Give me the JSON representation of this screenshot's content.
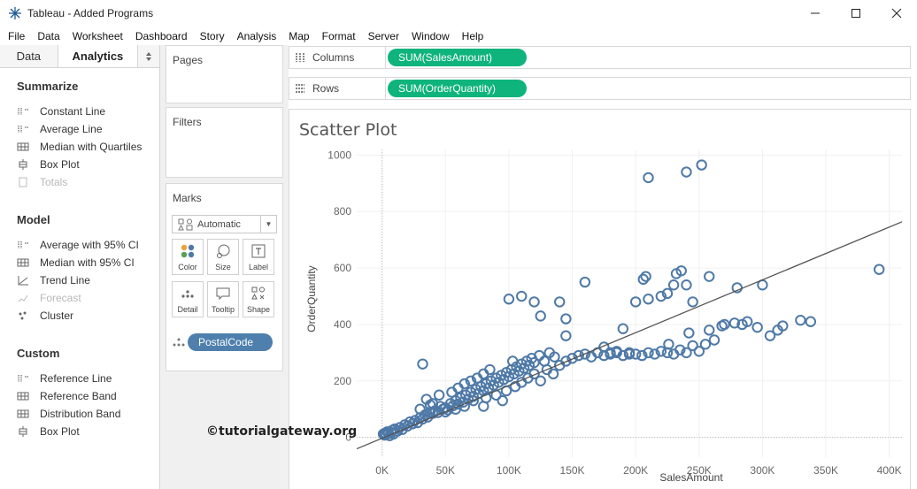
{
  "window": {
    "title": "Tableau - Added Programs",
    "minimize_icon": "minimize-icon",
    "maximize_icon": "maximize-icon",
    "close_icon": "close-icon"
  },
  "menu": [
    "File",
    "Data",
    "Worksheet",
    "Dashboard",
    "Story",
    "Analysis",
    "Map",
    "Format",
    "Server",
    "Window",
    "Help"
  ],
  "left_pane": {
    "tabs": {
      "data": "Data",
      "analytics": "Analytics"
    },
    "sections": {
      "summarize": {
        "title": "Summarize",
        "items": [
          {
            "label": "Constant Line",
            "icon": "constant-line-icon",
            "enabled": true
          },
          {
            "label": "Average Line",
            "icon": "average-line-icon",
            "enabled": true
          },
          {
            "label": "Median with Quartiles",
            "icon": "median-quartiles-icon",
            "enabled": true
          },
          {
            "label": "Box Plot",
            "icon": "box-plot-icon",
            "enabled": true
          },
          {
            "label": "Totals",
            "icon": "totals-icon",
            "enabled": false
          }
        ]
      },
      "model": {
        "title": "Model",
        "items": [
          {
            "label": "Average with 95% CI",
            "icon": "average-ci-icon",
            "enabled": true
          },
          {
            "label": "Median with 95% CI",
            "icon": "median-ci-icon",
            "enabled": true
          },
          {
            "label": "Trend Line",
            "icon": "trend-line-icon",
            "enabled": true
          },
          {
            "label": "Forecast",
            "icon": "forecast-icon",
            "enabled": false
          },
          {
            "label": "Cluster",
            "icon": "cluster-icon",
            "enabled": true
          }
        ]
      },
      "custom": {
        "title": "Custom",
        "items": [
          {
            "label": "Reference Line",
            "icon": "reference-line-icon",
            "enabled": true
          },
          {
            "label": "Reference Band",
            "icon": "reference-band-icon",
            "enabled": true
          },
          {
            "label": "Distribution Band",
            "icon": "distribution-band-icon",
            "enabled": true
          },
          {
            "label": "Box Plot",
            "icon": "box-plot-icon",
            "enabled": true
          }
        ]
      }
    }
  },
  "cards": {
    "pages": "Pages",
    "filters": "Filters",
    "marks": {
      "title": "Marks",
      "mark_type": "Automatic",
      "buttons": [
        "Color",
        "Size",
        "Label",
        "Detail",
        "Tooltip",
        "Shape"
      ],
      "detail_pill": "PostalCode"
    }
  },
  "shelves": {
    "columns": {
      "label": "Columns",
      "pill": "SUM(SalesAmount)"
    },
    "rows": {
      "label": "Rows",
      "pill": "SUM(OrderQuantity)"
    }
  },
  "view": {
    "title": "Scatter Plot",
    "watermark": "©tutorialgateway.org"
  },
  "colors": {
    "measure_pill": "#0fb37c",
    "dimension_pill": "#4e7fad",
    "mark": "#4e79a7"
  },
  "chart_data": {
    "type": "scatter",
    "title": "Scatter Plot",
    "xlabel": "SalesAmount",
    "ylabel": "OrderQuantity",
    "xlim": [
      -20000,
      410000
    ],
    "ylim": [
      -70,
      1020
    ],
    "x_ticks": [
      0,
      50000,
      100000,
      150000,
      200000,
      250000,
      300000,
      350000,
      400000
    ],
    "x_tick_labels": [
      "0K",
      "50K",
      "100K",
      "150K",
      "200K",
      "250K",
      "300K",
      "350K",
      "400K"
    ],
    "y_ticks": [
      0,
      200,
      400,
      600,
      800,
      1000
    ],
    "y_tick_labels": [
      "0",
      "200",
      "400",
      "600",
      "800",
      "1000"
    ],
    "grid": true,
    "trend_line": {
      "slope": 0.00187,
      "intercept": -3
    },
    "points": [
      [
        1000,
        12
      ],
      [
        2000,
        8
      ],
      [
        2500,
        15
      ],
      [
        3000,
        10
      ],
      [
        4000,
        20
      ],
      [
        5000,
        14
      ],
      [
        6000,
        6
      ],
      [
        7000,
        18
      ],
      [
        8000,
        25
      ],
      [
        9000,
        12
      ],
      [
        10000,
        30
      ],
      [
        12000,
        22
      ],
      [
        14000,
        35
      ],
      [
        16000,
        28
      ],
      [
        18000,
        45
      ],
      [
        20000,
        40
      ],
      [
        22000,
        55
      ],
      [
        24000,
        48
      ],
      [
        26000,
        60
      ],
      [
        28000,
        52
      ],
      [
        30000,
        70
      ],
      [
        32000,
        65
      ],
      [
        34000,
        80
      ],
      [
        36000,
        72
      ],
      [
        38000,
        90
      ],
      [
        40000,
        85
      ],
      [
        42000,
        95
      ],
      [
        44000,
        88
      ],
      [
        46000,
        110
      ],
      [
        48000,
        100
      ],
      [
        50000,
        105
      ],
      [
        52000,
        98
      ],
      [
        54000,
        120
      ],
      [
        56000,
        112
      ],
      [
        58000,
        130
      ],
      [
        60000,
        118
      ],
      [
        62000,
        140
      ],
      [
        64000,
        125
      ],
      [
        66000,
        150
      ],
      [
        68000,
        135
      ],
      [
        70000,
        160
      ],
      [
        72000,
        145
      ],
      [
        74000,
        170
      ],
      [
        76000,
        155
      ],
      [
        78000,
        180
      ],
      [
        80000,
        165
      ],
      [
        82000,
        190
      ],
      [
        84000,
        175
      ],
      [
        86000,
        200
      ],
      [
        88000,
        185
      ],
      [
        90000,
        210
      ],
      [
        92000,
        195
      ],
      [
        94000,
        220
      ],
      [
        96000,
        205
      ],
      [
        98000,
        230
      ],
      [
        100000,
        215
      ],
      [
        102000,
        240
      ],
      [
        104000,
        225
      ],
      [
        106000,
        250
      ],
      [
        108000,
        235
      ],
      [
        110000,
        260
      ],
      [
        112000,
        245
      ],
      [
        114000,
        270
      ],
      [
        116000,
        255
      ],
      [
        118000,
        280
      ],
      [
        120000,
        265
      ],
      [
        124000,
        290
      ],
      [
        128000,
        270
      ],
      [
        132000,
        300
      ],
      [
        136000,
        285
      ],
      [
        35000,
        135
      ],
      [
        40000,
        120
      ],
      [
        45000,
        150
      ],
      [
        55000,
        160
      ],
      [
        60000,
        175
      ],
      [
        65000,
        190
      ],
      [
        70000,
        200
      ],
      [
        75000,
        210
      ],
      [
        80000,
        225
      ],
      [
        85000,
        240
      ],
      [
        30000,
        100
      ],
      [
        38000,
        115
      ],
      [
        50000,
        90
      ],
      [
        58000,
        100
      ],
      [
        65000,
        110
      ],
      [
        72000,
        130
      ],
      [
        82000,
        140
      ],
      [
        90000,
        150
      ],
      [
        98000,
        165
      ],
      [
        105000,
        180
      ],
      [
        110000,
        195
      ],
      [
        115000,
        210
      ],
      [
        120000,
        225
      ],
      [
        125000,
        200
      ],
      [
        130000,
        240
      ],
      [
        135000,
        225
      ],
      [
        140000,
        255
      ],
      [
        145000,
        270
      ],
      [
        150000,
        280
      ],
      [
        155000,
        290
      ],
      [
        160000,
        295
      ],
      [
        165000,
        285
      ],
      [
        170000,
        300
      ],
      [
        175000,
        290
      ],
      [
        180000,
        295
      ],
      [
        185000,
        300
      ],
      [
        190000,
        290
      ],
      [
        195000,
        300
      ],
      [
        200000,
        295
      ],
      [
        205000,
        290
      ],
      [
        210000,
        300
      ],
      [
        215000,
        295
      ],
      [
        220000,
        305
      ],
      [
        225000,
        300
      ],
      [
        230000,
        295
      ],
      [
        235000,
        310
      ],
      [
        240000,
        300
      ],
      [
        245000,
        325
      ],
      [
        250000,
        305
      ],
      [
        255000,
        330
      ],
      [
        175000,
        320
      ],
      [
        180000,
        300
      ],
      [
        185000,
        305
      ],
      [
        190000,
        385
      ],
      [
        195000,
        295
      ],
      [
        226000,
        330
      ],
      [
        242000,
        370
      ],
      [
        258000,
        380
      ],
      [
        262000,
        345
      ],
      [
        268000,
        395
      ],
      [
        270000,
        400
      ],
      [
        278000,
        405
      ],
      [
        284000,
        400
      ],
      [
        288000,
        410
      ],
      [
        296000,
        390
      ],
      [
        306000,
        360
      ],
      [
        312000,
        380
      ],
      [
        316000,
        395
      ],
      [
        330000,
        415
      ],
      [
        338000,
        410
      ],
      [
        100000,
        490
      ],
      [
        110000,
        500
      ],
      [
        120000,
        480
      ],
      [
        125000,
        430
      ],
      [
        140000,
        480
      ],
      [
        145000,
        420
      ],
      [
        145000,
        360
      ],
      [
        160000,
        550
      ],
      [
        200000,
        480
      ],
      [
        206000,
        560
      ],
      [
        208000,
        570
      ],
      [
        210000,
        490
      ],
      [
        220000,
        500
      ],
      [
        225000,
        510
      ],
      [
        230000,
        540
      ],
      [
        232000,
        580
      ],
      [
        236000,
        590
      ],
      [
        240000,
        540
      ],
      [
        245000,
        480
      ],
      [
        258000,
        570
      ],
      [
        300000,
        540
      ],
      [
        280000,
        530
      ],
      [
        392000,
        595
      ],
      [
        210000,
        920
      ],
      [
        240000,
        940
      ],
      [
        252000,
        965
      ],
      [
        32000,
        260
      ],
      [
        80000,
        110
      ],
      [
        95000,
        130
      ],
      [
        103000,
        270
      ]
    ]
  }
}
